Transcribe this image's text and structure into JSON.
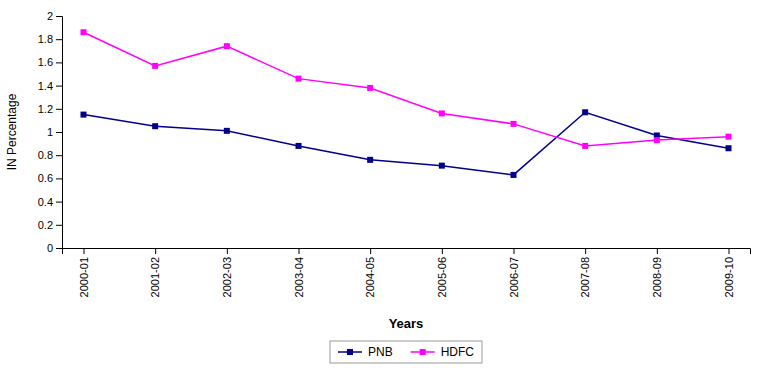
{
  "chart_data": {
    "type": "line",
    "categories": [
      "2000-01",
      "2001-02",
      "2002-03",
      "2003-04",
      "2004-05",
      "2005-06",
      "2006-07",
      "2007-08",
      "2008-09",
      "2009-10"
    ],
    "series": [
      {
        "name": "PNB",
        "color": "#00008B",
        "marker": "square",
        "values": [
          1.15,
          1.05,
          1.01,
          0.88,
          0.76,
          0.71,
          0.63,
          1.17,
          0.97,
          0.86
        ]
      },
      {
        "name": "HDFC",
        "color": "#FF00FF",
        "marker": "square",
        "values": [
          1.86,
          1.57,
          1.74,
          1.46,
          1.38,
          1.16,
          1.07,
          0.88,
          0.93,
          0.96
        ]
      }
    ],
    "xlabel": "Years",
    "ylabel": "IN Percentage",
    "ylim": [
      0,
      2
    ],
    "yticks": [
      0,
      0.2,
      0.4,
      0.6,
      0.8,
      1,
      1.2,
      1.4,
      1.6,
      1.8,
      2
    ],
    "grid": false,
    "legend": "bottom"
  }
}
